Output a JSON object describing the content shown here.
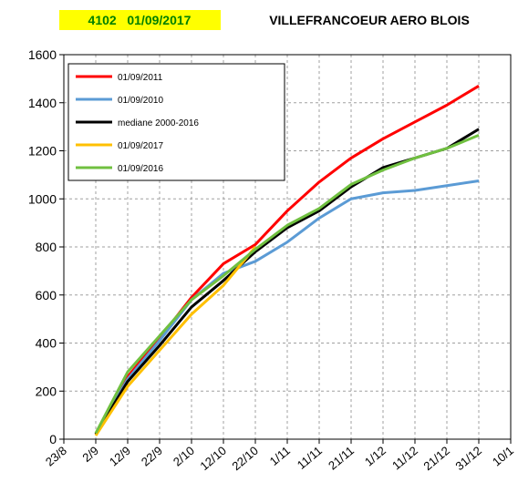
{
  "chart_data": {
    "type": "line",
    "station_label": "4102   01/09/2017",
    "title": "VILLEFRANCOEUR AERO BLOIS",
    "x": [
      10,
      20,
      30,
      40,
      50,
      60,
      70,
      80,
      90,
      100,
      110,
      120,
      130
    ],
    "xlim": [
      0,
      140
    ],
    "xticks": [
      {
        "value": 0,
        "label": "23/8"
      },
      {
        "value": 10,
        "label": "2/9"
      },
      {
        "value": 20,
        "label": "12/9"
      },
      {
        "value": 30,
        "label": "22/9"
      },
      {
        "value": 40,
        "label": "2/10"
      },
      {
        "value": 50,
        "label": "12/10"
      },
      {
        "value": 60,
        "label": "22/10"
      },
      {
        "value": 70,
        "label": "1/11"
      },
      {
        "value": 80,
        "label": "11/11"
      },
      {
        "value": 90,
        "label": "21/11"
      },
      {
        "value": 100,
        "label": "1/12"
      },
      {
        "value": 110,
        "label": "11/12"
      },
      {
        "value": 120,
        "label": "21/12"
      },
      {
        "value": 130,
        "label": "31/12"
      },
      {
        "value": 140,
        "label": "10/1"
      }
    ],
    "ylim": [
      0,
      1600
    ],
    "yticks": [
      0,
      200,
      400,
      600,
      800,
      1000,
      1200,
      1400,
      1600
    ],
    "grid": true,
    "legend": "upper left",
    "series": [
      {
        "name": "01/09/2011",
        "color": "#ff0000",
        "values": [
          20,
          260,
          420,
          590,
          730,
          810,
          950,
          1070,
          1170,
          1250,
          1320,
          1390,
          1470
        ]
      },
      {
        "name": "01/09/2010",
        "color": "#5b9bd5",
        "values": [
          20,
          250,
          410,
          580,
          690,
          740,
          820,
          920,
          1000,
          1025,
          1035,
          1055,
          1075
        ]
      },
      {
        "name": "mediane 2000-2016",
        "color": "#000000",
        "values": [
          20,
          240,
          390,
          550,
          660,
          780,
          880,
          950,
          1050,
          1130,
          1170,
          1210,
          1290
        ]
      },
      {
        "name": "01/09/2017",
        "color": "#ffc000",
        "values": [
          15,
          220,
          370,
          520,
          640,
          800,
          null,
          null,
          null,
          null,
          null,
          null,
          null
        ]
      },
      {
        "name": "01/09/2016",
        "color": "#70c040",
        "values": [
          25,
          280,
          430,
          580,
          680,
          790,
          890,
          960,
          1060,
          1120,
          1170,
          1210,
          1265
        ]
      }
    ]
  }
}
